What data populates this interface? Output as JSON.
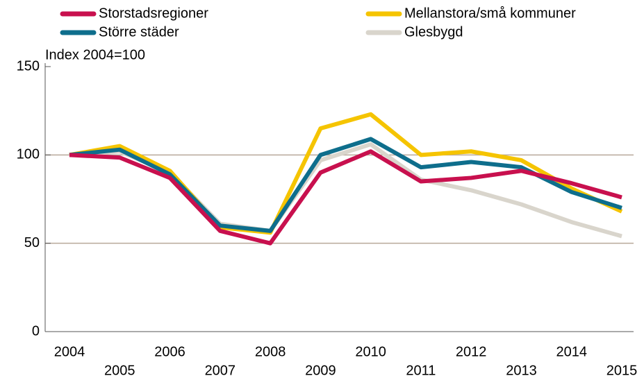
{
  "chart_data": {
    "type": "line",
    "ylabel": "Index 2004=100",
    "categories": [
      "2004",
      "2005",
      "2006",
      "2007",
      "2008",
      "2009",
      "2010",
      "2011",
      "2012",
      "2013",
      "2014",
      "2015"
    ],
    "series": [
      {
        "name": "Storstadsregioner",
        "color": "#c8104e",
        "values": [
          100,
          98.5,
          87,
          57,
          50,
          90,
          102,
          85,
          87,
          91,
          84,
          76
        ]
      },
      {
        "name": "Större städer",
        "color": "#0e6e8c",
        "values": [
          100,
          103,
          89,
          60,
          57,
          100,
          109,
          93,
          96,
          93,
          79,
          70
        ]
      },
      {
        "name": "Mellanstora/små kommuner",
        "color": "#f5c400",
        "values": [
          100,
          105,
          91,
          59,
          56,
          115,
          123,
          100,
          102,
          97,
          81,
          68
        ]
      },
      {
        "name": "Glesbygd",
        "color": "#d9d5cc",
        "values": [
          100,
          102,
          90,
          61,
          57,
          97,
          106,
          86,
          80,
          72,
          62,
          54
        ]
      }
    ],
    "ylim": [
      0,
      150
    ],
    "yticks": [
      0,
      50,
      100,
      150
    ],
    "grid": true
  }
}
